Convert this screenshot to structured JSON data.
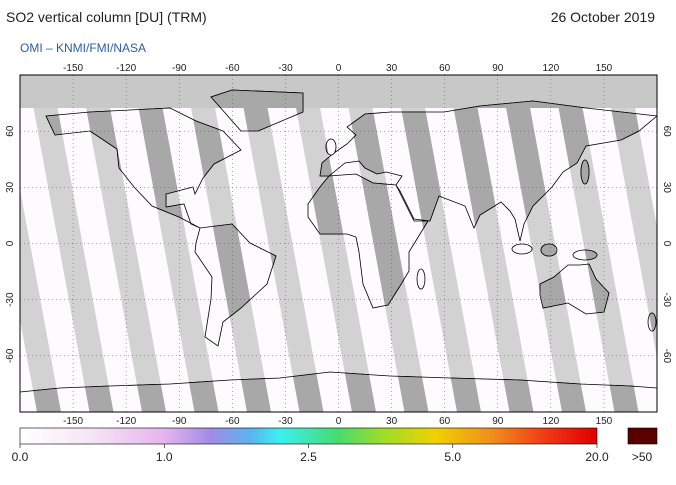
{
  "header": {
    "title": "SO2 vertical column [DU] (TRM)",
    "date": "26 October 2019",
    "subtitle": "OMI  –  KNMI/FMI/NASA"
  },
  "map": {
    "lon_ticks": [
      -150,
      -120,
      -90,
      -60,
      -30,
      0,
      30,
      60,
      90,
      120,
      150
    ],
    "lat_ticks": [
      60,
      30,
      0,
      -30,
      -60
    ],
    "xlim": [
      -180,
      180
    ],
    "ylim": [
      -90,
      90
    ]
  },
  "colorbar": {
    "ticks": [
      {
        "value": 0,
        "label": "0.0"
      },
      {
        "value": 1,
        "label": "1.0"
      },
      {
        "value": 2.5,
        "label": "2.5"
      },
      {
        "value": 5,
        "label": "5.0"
      },
      {
        "value": 20,
        "label": "20.0"
      }
    ],
    "over_label": ">50"
  }
}
